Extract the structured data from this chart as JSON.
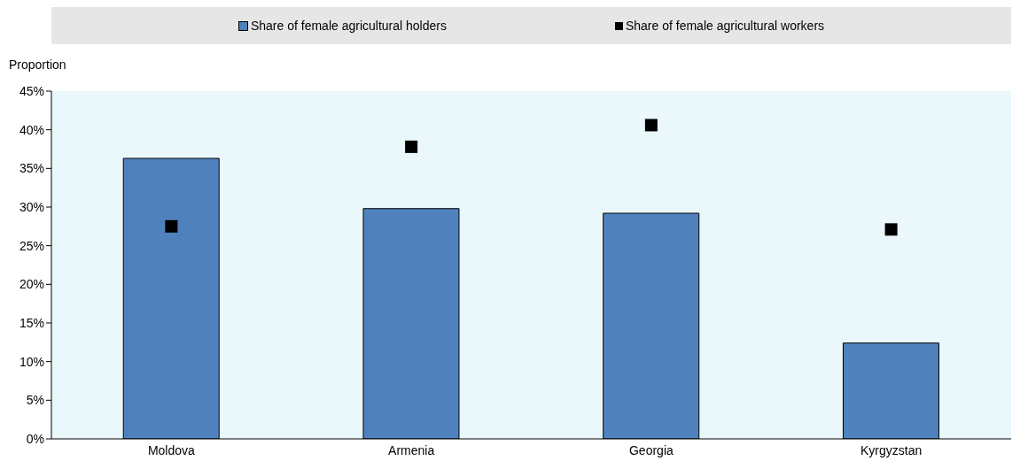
{
  "chart_data": {
    "type": "bar",
    "ylabel": "Proportion",
    "categories": [
      "Moldova",
      "Armenia",
      "Georgia",
      "Kyrgyzstan"
    ],
    "series": [
      {
        "name": "Share of female agricultural holders",
        "color": "#4f81bd",
        "values": [
          36.3,
          29.8,
          29.2,
          12.4
        ]
      },
      {
        "name": "Share of female agricultural workers",
        "type": "scatter",
        "color": "#000000",
        "values": [
          27.5,
          37.8,
          40.6,
          27.1
        ]
      }
    ],
    "ylim": [
      0,
      45
    ],
    "yticks": [
      {
        "value": 0,
        "label": "0%"
      },
      {
        "value": 5,
        "label": "5%"
      },
      {
        "value": 10,
        "label": "10%"
      },
      {
        "value": 15,
        "label": "15%"
      },
      {
        "value": 20,
        "label": "20%"
      },
      {
        "value": 25,
        "label": "25%"
      },
      {
        "value": 30,
        "label": "30%"
      },
      {
        "value": 35,
        "label": "35%"
      },
      {
        "value": 40,
        "label": "40%"
      },
      {
        "value": 45,
        "label": "45%"
      }
    ],
    "legend": "top",
    "marker": "square"
  }
}
